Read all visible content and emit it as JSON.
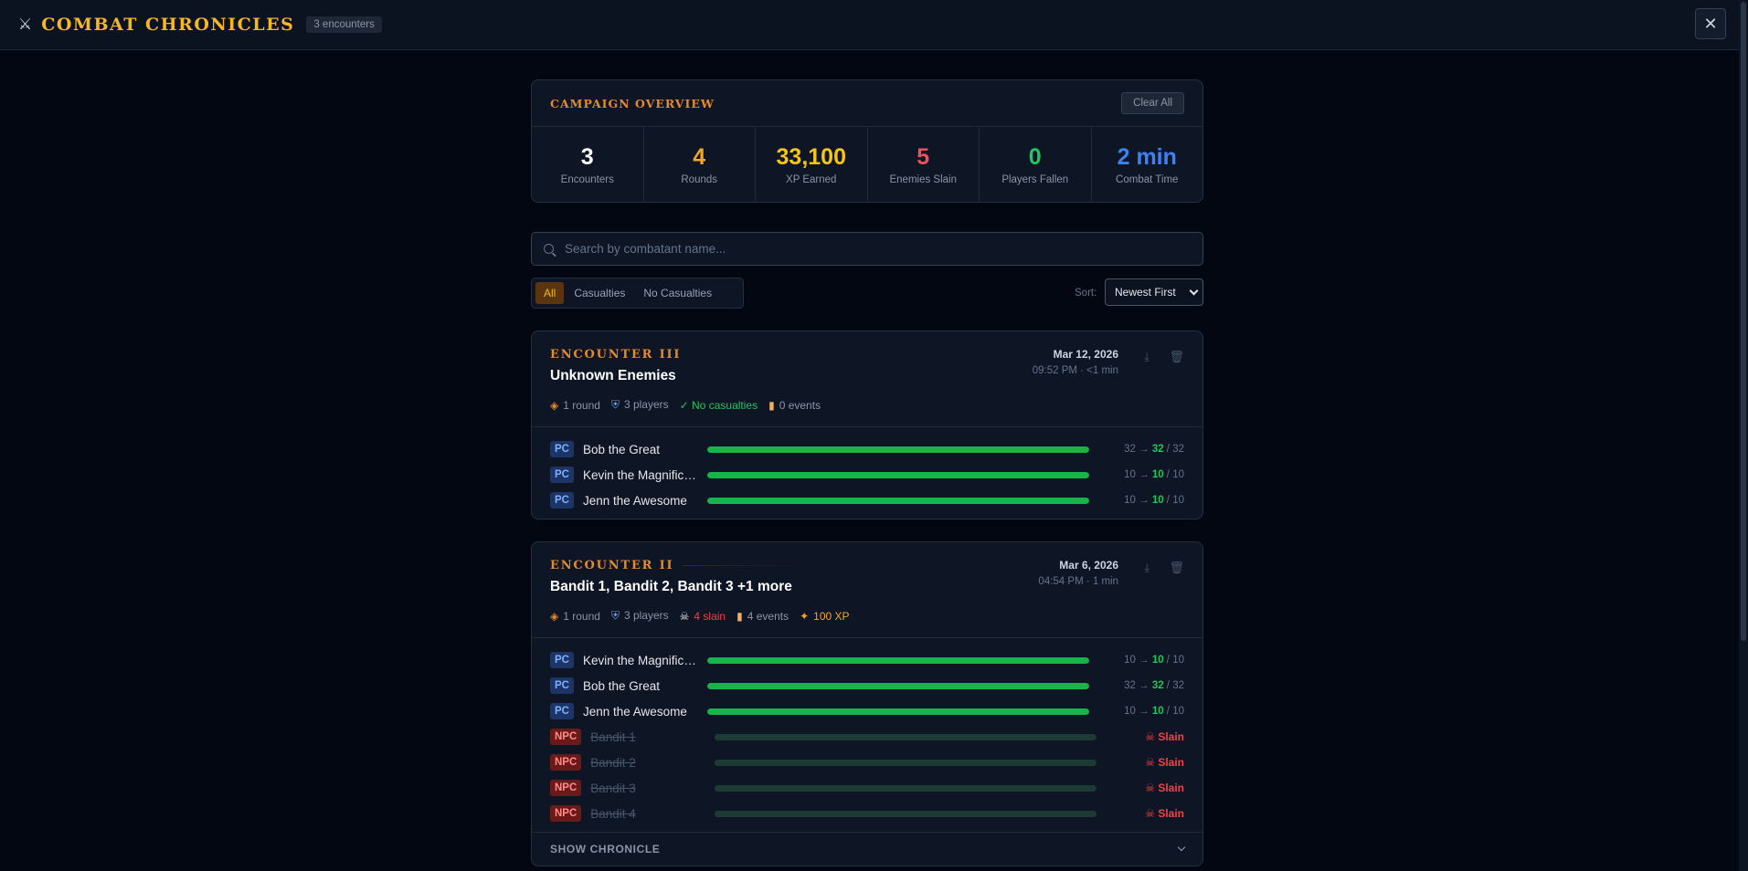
{
  "header": {
    "icon": "crossed-swords-icon",
    "title": "COMBAT CHRONICLES",
    "badge": "3 encounters",
    "close": "✕"
  },
  "overview": {
    "title": "CAMPAIGN OVERVIEW",
    "clear_label": "Clear All",
    "stats": [
      {
        "value": "3",
        "label": "Encounters",
        "color": "#ffffff"
      },
      {
        "value": "4",
        "label": "Rounds",
        "color": "#f5a524"
      },
      {
        "value": "33,100",
        "label": "XP Earned",
        "color": "#f5c518"
      },
      {
        "value": "5",
        "label": "Enemies Slain",
        "color": "#f0505a"
      },
      {
        "value": "0",
        "label": "Players Fallen",
        "color": "#22c55e"
      },
      {
        "value": "2 min",
        "label": "Combat Time",
        "color": "#3b82f6"
      }
    ]
  },
  "search": {
    "placeholder": "Search by combatant name..."
  },
  "filters": {
    "all": "All",
    "casualties": "Casualties",
    "no_casualties": "No Casualties"
  },
  "sort": {
    "label": "Sort:",
    "value": "Newest First"
  },
  "encounters": [
    {
      "label": "ENCOUNTER III",
      "title": "Unknown Enemies",
      "date": "Mar 12, 2026",
      "time": "09:52 PM · <1 min",
      "meta": {
        "rounds": "1 round",
        "players": "3 players",
        "casualties": "✓ No casualties",
        "events": "0 events"
      },
      "combatants": [
        {
          "tag": "PC",
          "name": "Bob the Great",
          "start": "32",
          "end": "32",
          "max": "32",
          "hp_fraction": 1.0
        },
        {
          "tag": "PC",
          "name": "Kevin the Magnificent",
          "start": "10",
          "end": "10",
          "max": "10",
          "hp_fraction": 1.0
        },
        {
          "tag": "PC",
          "name": "Jenn the Awesome",
          "start": "10",
          "end": "10",
          "max": "10",
          "hp_fraction": 1.0
        }
      ]
    },
    {
      "label": "ENCOUNTER II",
      "title": "Bandit 1, Bandit 2, Bandit 3 +1 more",
      "date": "Mar 6, 2026",
      "time": "04:54 PM · 1 min",
      "meta": {
        "rounds": "1 round",
        "players": "3 players",
        "slain": "4 slain",
        "events": "4 events",
        "xp": "100 XP"
      },
      "combatants": [
        {
          "tag": "PC",
          "name": "Kevin the Magnificent",
          "start": "10",
          "end": "10",
          "max": "10",
          "hp_fraction": 1.0
        },
        {
          "tag": "PC",
          "name": "Bob the Great",
          "start": "32",
          "end": "32",
          "max": "32",
          "hp_fraction": 1.0
        },
        {
          "tag": "PC",
          "name": "Jenn the Awesome",
          "start": "10",
          "end": "10",
          "max": "10",
          "hp_fraction": 1.0
        },
        {
          "tag": "NPC",
          "name": "Bandit 1",
          "status": "Slain"
        },
        {
          "tag": "NPC",
          "name": "Bandit 2",
          "status": "Slain"
        },
        {
          "tag": "NPC",
          "name": "Bandit 3",
          "status": "Slain"
        },
        {
          "tag": "NPC",
          "name": "Bandit 4",
          "status": "Slain"
        }
      ],
      "footer": "SHOW CHRONICLE"
    }
  ]
}
